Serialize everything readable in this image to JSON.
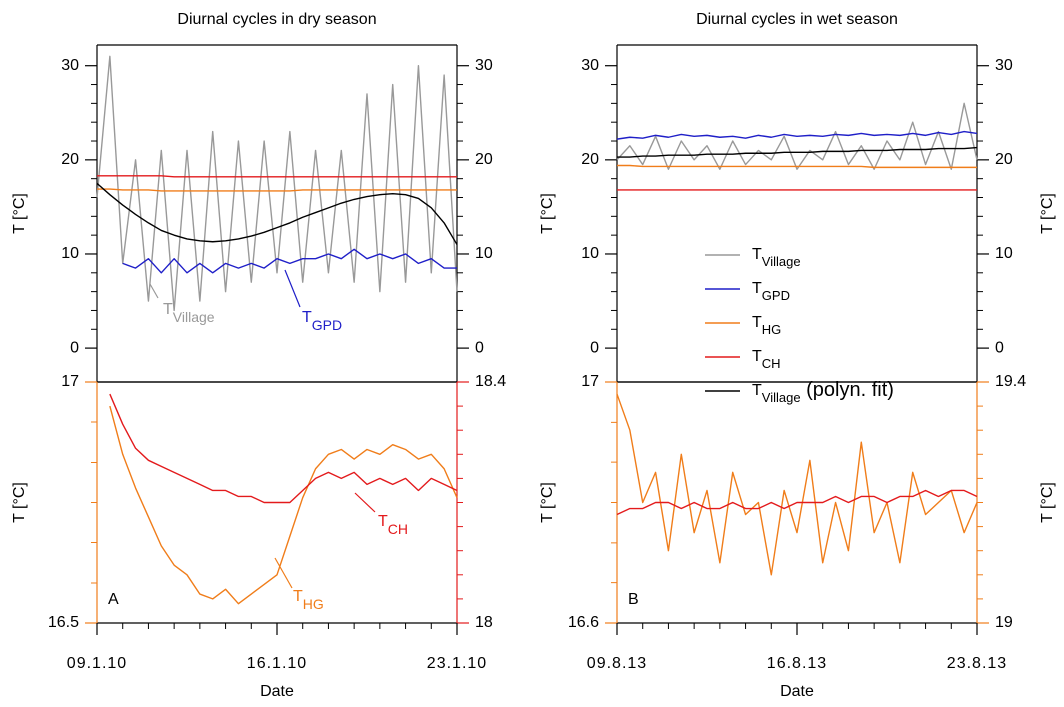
{
  "chart_data": [
    {
      "type": "line",
      "title": "Diurnal cycles in dry season",
      "ylabel": "T [°C]",
      "x": [
        0,
        0.5,
        1,
        1.5,
        2,
        2.5,
        3,
        3.5,
        4,
        4.5,
        5,
        5.5,
        6,
        6.5,
        7,
        7.5,
        8,
        8.5,
        9,
        9.5,
        10,
        10.5,
        11,
        11.5,
        12,
        12.5,
        13,
        13.5,
        14
      ],
      "xlim": [
        0,
        14
      ],
      "ylim": [
        -3.6,
        32.2
      ],
      "yticks": [
        0,
        10,
        20,
        30
      ],
      "yminorticks": [
        2,
        4,
        6,
        8,
        12,
        14,
        16,
        18,
        22,
        24,
        26,
        28
      ],
      "y2lim": [
        -3.6,
        32.2
      ],
      "y2ticks": [
        0,
        10,
        20,
        30
      ],
      "series": [
        {
          "color": "#999999",
          "values": [
            16,
            31,
            9,
            20,
            5,
            21,
            4,
            21,
            5,
            23,
            6,
            22,
            7,
            22,
            8,
            23,
            7,
            21,
            8,
            21,
            7,
            27,
            6,
            28,
            7,
            30,
            8,
            29,
            6
          ]
        },
        {
          "color": "#1f1fc8",
          "values": [
            null,
            null,
            9,
            8.5,
            9.5,
            8,
            9.5,
            8,
            9,
            8,
            9,
            8.5,
            9,
            8.5,
            9.5,
            9,
            9.5,
            9.5,
            10,
            9.5,
            10.5,
            9.5,
            10,
            9.5,
            10,
            9,
            9.5,
            8.5,
            8.5
          ]
        },
        {
          "color": "#f07d1a",
          "values": [
            16.9,
            16.9,
            16.8,
            16.8,
            16.8,
            16.7,
            16.7,
            16.7,
            16.7,
            16.7,
            16.7,
            16.7,
            16.7,
            16.7,
            16.7,
            16.7,
            16.8,
            16.8,
            16.8,
            16.8,
            16.8,
            16.8,
            16.8,
            16.8,
            16.8,
            16.8,
            16.8,
            16.8,
            16.8
          ]
        },
        {
          "color": "#e31a1c",
          "values": [
            18.3,
            18.3,
            18.3,
            18.3,
            18.3,
            18.3,
            18.2,
            18.2,
            18.2,
            18.2,
            18.2,
            18.2,
            18.2,
            18.2,
            18.2,
            18.2,
            18.2,
            18.2,
            18.2,
            18.2,
            18.2,
            18.2,
            18.2,
            18.2,
            18.2,
            18.2,
            18.2,
            18.2,
            18.2
          ]
        },
        {
          "color": "#000000",
          "values": [
            17.5,
            16.3,
            15.2,
            14.2,
            13.3,
            12.5,
            12.0,
            11.6,
            11.4,
            11.3,
            11.4,
            11.6,
            11.9,
            12.3,
            12.8,
            13.3,
            13.9,
            14.4,
            14.9,
            15.4,
            15.8,
            16.1,
            16.3,
            16.4,
            16.3,
            15.9,
            14.9,
            13.3,
            11.0
          ]
        }
      ],
      "annotations": [
        {
          "main": "T",
          "sub": "Village",
          "color": "#999999"
        },
        {
          "main": "T",
          "sub": "GPD",
          "color": "#1f1fc8"
        }
      ]
    },
    {
      "type": "line",
      "xlabel": "Date",
      "ylabel": "T [°C]",
      "y_color": "#f07d1a",
      "y2_color": "#e31a1c",
      "x": [
        0,
        0.5,
        1,
        1.5,
        2,
        2.5,
        3,
        3.5,
        4,
        4.5,
        5,
        5.5,
        6,
        6.5,
        7,
        7.5,
        8,
        8.5,
        9,
        9.5,
        10,
        10.5,
        11,
        11.5,
        12,
        12.5,
        13,
        13.5,
        14
      ],
      "xlim": [
        0,
        14
      ],
      "xticks": [
        {
          "value": 0,
          "label": "09.1.10"
        },
        {
          "value": 7,
          "label": "16.1.10"
        },
        {
          "value": 14,
          "label": "23.1.10"
        }
      ],
      "xminorticks": [
        1,
        2,
        3,
        4,
        5,
        6,
        8,
        9,
        10,
        11,
        12,
        13
      ],
      "ylim": [
        16.5,
        17
      ],
      "yticks": [
        16.5,
        17
      ],
      "yminorticks": [
        16.583,
        16.667,
        16.75,
        16.833,
        16.917
      ],
      "y2lim": [
        18,
        18.4
      ],
      "y2ticks": [
        18,
        18.4
      ],
      "y2minorticks": [
        18.04,
        18.08,
        18.12,
        18.16,
        18.2,
        18.24,
        18.28,
        18.32,
        18.36
      ],
      "series": [
        {
          "color": "#f07d1a",
          "values": [
            null,
            16.95,
            16.85,
            16.78,
            16.72,
            16.66,
            16.62,
            16.6,
            16.56,
            16.55,
            16.57,
            16.54,
            16.56,
            16.58,
            16.6,
            16.68,
            16.76,
            16.82,
            16.85,
            16.86,
            16.84,
            16.86,
            16.85,
            16.87,
            16.86,
            16.84,
            16.85,
            16.82,
            16.76
          ]
        },
        {
          "color": "#e31a1c",
          "axis": "y2",
          "values": [
            null,
            18.38,
            18.33,
            18.29,
            18.27,
            18.26,
            18.25,
            18.24,
            18.23,
            18.22,
            18.22,
            18.21,
            18.21,
            18.2,
            18.2,
            18.2,
            18.22,
            18.24,
            18.25,
            18.24,
            18.25,
            18.23,
            18.24,
            18.23,
            18.24,
            18.22,
            18.24,
            18.23,
            18.22
          ]
        }
      ],
      "annotations": [
        {
          "main": "A",
          "color": "#000000"
        },
        {
          "main": "T",
          "sub": "CH",
          "color": "#e31a1c"
        },
        {
          "main": "T",
          "sub": "HG",
          "color": "#f07d1a"
        }
      ]
    },
    {
      "type": "line",
      "title": "Diurnal cycles in wet season",
      "ylabel": "T [°C]",
      "y2label": "T [°C]",
      "x": [
        0,
        0.5,
        1,
        1.5,
        2,
        2.5,
        3,
        3.5,
        4,
        4.5,
        5,
        5.5,
        6,
        6.5,
        7,
        7.5,
        8,
        8.5,
        9,
        9.5,
        10,
        10.5,
        11,
        11.5,
        12,
        12.5,
        13,
        13.5,
        14
      ],
      "xlim": [
        0,
        14
      ],
      "ylim": [
        -3.6,
        32.2
      ],
      "yticks": [
        0,
        10,
        20,
        30
      ],
      "yminorticks": [
        2,
        4,
        6,
        8,
        12,
        14,
        16,
        18,
        22,
        24,
        26,
        28
      ],
      "y2lim": [
        -3.6,
        32.2
      ],
      "y2ticks": [
        0,
        10,
        20,
        30
      ],
      "legend": true,
      "series": [
        {
          "name": "T",
          "sub": "Village",
          "color": "#999999",
          "values": [
            20,
            21.5,
            19.5,
            22.5,
            19,
            22,
            20,
            21.5,
            19,
            22,
            19.5,
            21,
            20,
            22.5,
            19,
            21,
            20,
            23,
            19.5,
            21.5,
            19,
            22,
            20,
            24,
            19.5,
            23,
            19,
            26,
            20
          ]
        },
        {
          "name": "T",
          "sub": "GPD",
          "color": "#1f1fc8",
          "values": [
            22.2,
            22.4,
            22.3,
            22.6,
            22.4,
            22.7,
            22.5,
            22.6,
            22.4,
            22.5,
            22.3,
            22.6,
            22.4,
            22.7,
            22.5,
            22.6,
            22.5,
            22.7,
            22.6,
            22.8,
            22.6,
            22.7,
            22.6,
            22.8,
            22.6,
            22.9,
            22.7,
            23.0,
            22.8
          ]
        },
        {
          "name": "T",
          "sub": "HG",
          "color": "#f07d1a",
          "values": [
            19.4,
            19.4,
            19.3,
            19.3,
            19.3,
            19.3,
            19.3,
            19.3,
            19.3,
            19.3,
            19.3,
            19.3,
            19.3,
            19.3,
            19.3,
            19.3,
            19.3,
            19.3,
            19.3,
            19.3,
            19.2,
            19.2,
            19.2,
            19.2,
            19.2,
            19.2,
            19.2,
            19.2,
            19.2
          ]
        },
        {
          "name": "T",
          "sub": "CH",
          "color": "#e31a1c",
          "values": [
            16.8,
            16.8,
            16.8,
            16.8,
            16.8,
            16.8,
            16.8,
            16.8,
            16.8,
            16.8,
            16.8,
            16.8,
            16.8,
            16.8,
            16.8,
            16.8,
            16.8,
            16.8,
            16.8,
            16.8,
            16.8,
            16.8,
            16.8,
            16.8,
            16.8,
            16.8,
            16.8,
            16.8,
            16.8
          ]
        },
        {
          "name": "T",
          "sub": "Village",
          "suffix": " (polyn. fit)",
          "color": "#000000",
          "values": [
            20.3,
            20.3,
            20.4,
            20.4,
            20.5,
            20.5,
            20.5,
            20.6,
            20.6,
            20.6,
            20.7,
            20.7,
            20.7,
            20.8,
            20.8,
            20.8,
            20.9,
            20.9,
            20.9,
            21.0,
            21.0,
            21.0,
            21.1,
            21.1,
            21.1,
            21.2,
            21.2,
            21.2,
            21.3
          ]
        }
      ]
    },
    {
      "type": "line",
      "xlabel": "Date",
      "ylabel": "T [°C]",
      "y2label": "T [°C]",
      "y_color": "#f07d1a",
      "y2_color": "#f07d1a",
      "x": [
        0,
        0.5,
        1,
        1.5,
        2,
        2.5,
        3,
        3.5,
        4,
        4.5,
        5,
        5.5,
        6,
        6.5,
        7,
        7.5,
        8,
        8.5,
        9,
        9.5,
        10,
        10.5,
        11,
        11.5,
        12,
        12.5,
        13,
        13.5,
        14
      ],
      "xlim": [
        0,
        14
      ],
      "xticks": [
        {
          "value": 0,
          "label": "09.8.13"
        },
        {
          "value": 7,
          "label": "16.8.13"
        },
        {
          "value": 14,
          "label": "23.8.13"
        }
      ],
      "xminorticks": [
        1,
        2,
        3,
        4,
        5,
        6,
        8,
        9,
        10,
        11,
        12,
        13
      ],
      "ylim": [
        16.6,
        17
      ],
      "yticks": [
        16.6,
        17
      ],
      "yminorticks": [
        16.667,
        16.733,
        16.8,
        16.867,
        16.933
      ],
      "y2lim": [
        19,
        19.4
      ],
      "y2ticks": [
        19,
        19.4
      ],
      "y2minorticks": [
        19.04,
        19.08,
        19.12,
        19.16,
        19.2,
        19.24,
        19.28,
        19.32,
        19.36
      ],
      "series": [
        {
          "color": "#f07d1a",
          "axis": "y2",
          "values": [
            19.38,
            19.32,
            19.2,
            19.25,
            19.12,
            19.28,
            19.15,
            19.22,
            19.1,
            19.25,
            19.18,
            19.2,
            19.08,
            19.22,
            19.15,
            19.27,
            19.1,
            19.2,
            19.12,
            19.3,
            19.15,
            19.2,
            19.1,
            19.25,
            19.18,
            19.2,
            19.22,
            19.15,
            19.2
          ]
        },
        {
          "color": "#e31a1c",
          "values": [
            16.78,
            16.79,
            16.79,
            16.8,
            16.8,
            16.79,
            16.8,
            16.79,
            16.79,
            16.8,
            16.79,
            16.79,
            16.8,
            16.79,
            16.8,
            16.8,
            16.8,
            16.81,
            16.8,
            16.81,
            16.81,
            16.8,
            16.81,
            16.81,
            16.82,
            16.81,
            16.82,
            16.82,
            16.81
          ]
        }
      ],
      "annotations": [
        {
          "main": "B",
          "color": "#000000"
        }
      ]
    }
  ]
}
